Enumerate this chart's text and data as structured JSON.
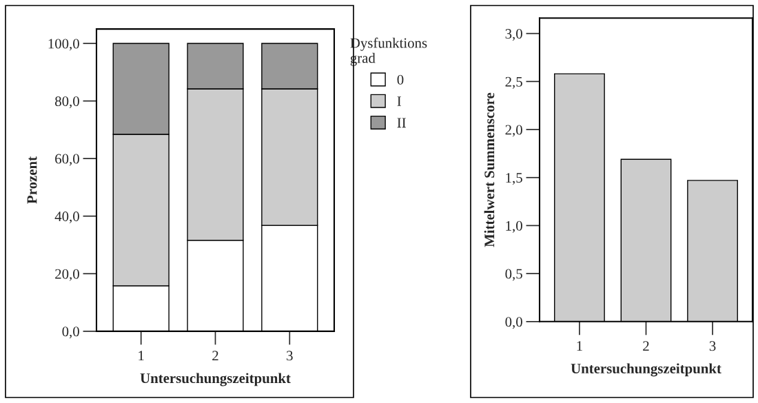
{
  "chart_data": [
    {
      "type": "bar",
      "stacked": true,
      "categories": [
        "1",
        "2",
        "3"
      ],
      "xlabel": "Untersuchungszeitpunkt",
      "ylabel": "Prozent",
      "legend_title": "Dysfunktions\ngrad",
      "legend": "right",
      "series": [
        {
          "name": "0",
          "color": "#ffffff",
          "values": [
            15.8,
            31.6,
            36.8
          ]
        },
        {
          "name": "I",
          "color": "#cccccc",
          "values": [
            52.6,
            52.6,
            47.4
          ]
        },
        {
          "name": "II",
          "color": "#999999",
          "values": [
            31.6,
            15.8,
            15.8
          ]
        }
      ],
      "ylim": [
        0,
        105
      ],
      "yticks": [
        {
          "value": 0,
          "label": "0,0"
        },
        {
          "value": 20,
          "label": "20,0"
        },
        {
          "value": 40,
          "label": "40,0"
        },
        {
          "value": 60,
          "label": "60,0"
        },
        {
          "value": 80,
          "label": "80,0"
        },
        {
          "value": 100,
          "label": "100,0"
        }
      ],
      "grid": false
    },
    {
      "type": "bar",
      "categories": [
        "1",
        "2",
        "3"
      ],
      "xlabel": "Untersuchungszeitpunkt",
      "ylabel": "Mittelwert Summenscore",
      "color": "#cccccc",
      "values": [
        2.58,
        1.69,
        1.47
      ],
      "ylim": [
        0,
        3.16
      ],
      "yticks": [
        {
          "value": 0,
          "label": "0,0"
        },
        {
          "value": 0.5,
          "label": "0,5"
        },
        {
          "value": 1,
          "label": "1,0"
        },
        {
          "value": 1.5,
          "label": "1,5"
        },
        {
          "value": 2,
          "label": "2,0"
        },
        {
          "value": 2.5,
          "label": "2,5"
        },
        {
          "value": 3,
          "label": "3,0"
        }
      ],
      "grid": false
    }
  ]
}
